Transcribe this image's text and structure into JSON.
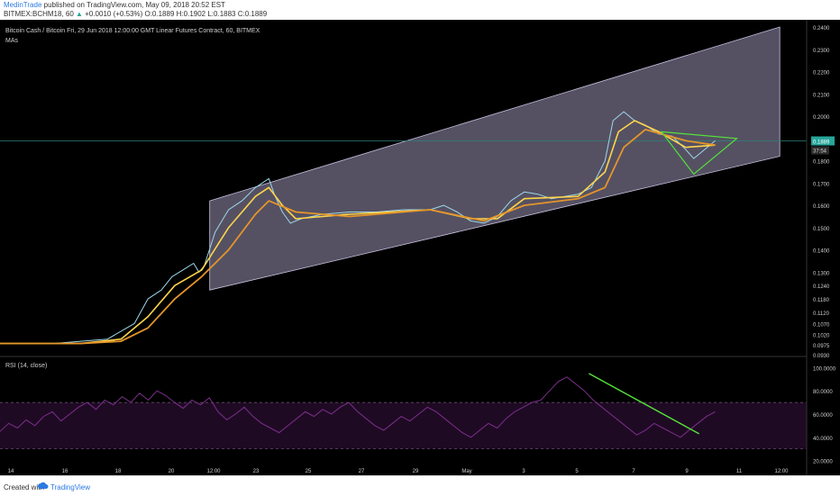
{
  "header": {
    "author": "MedinTrade",
    "published": "published on TradingView.com, May 09, 2018 20:52 EST",
    "symbol": "BITMEX:BCHM18, 60",
    "change": "+0.0010 (+0.53%)",
    "open": "O:0.1889",
    "high": "H:0.1902",
    "low": "L:0.1883",
    "close": "C:0.1889"
  },
  "chart_title": "Bitcoin Cash / Bitcoin Fri, 29 Jun 2018 12:00:00 GMT Linear Futures Contract, 60, BITMEX",
  "mas_label": "MAs",
  "rsi_label": "RSI (14, close)",
  "footer": {
    "created_with": "Created with",
    "brand": "TradingView"
  },
  "colors": {
    "background": "#000000",
    "channel": "#9a93b4",
    "ma_fast": "#ffd54a",
    "ma_slow": "#e5952a",
    "rsi_line": "#7b2f8a",
    "rsi_band": "#1f0a24",
    "trendline": "#55e33a",
    "last_price_line": "#2f7f78",
    "last_price_tag": "#26a69a"
  },
  "chart_data": [
    {
      "type": "candlestick",
      "title": "Bitcoin Cash / Bitcoin",
      "y_ticks": [
        "0.2400",
        "0.2300",
        "0.2200",
        "0.2100",
        "0.2000",
        "0.1900",
        "0.1800",
        "0.1700",
        "0.1600",
        "0.1500",
        "0.1400",
        "0.1300",
        "0.1240",
        "0.1180",
        "0.1120",
        "0.1070",
        "0.1020",
        "0.0975",
        "0.0930"
      ],
      "last_price": "0.1889",
      "secondary_tag": "37:54",
      "x_ticks": [
        "14",
        "16",
        "18",
        "20",
        "12:00",
        "23",
        "25",
        "27",
        "29",
        "May",
        "3",
        "5",
        "7",
        "9",
        "11",
        "12:00"
      ],
      "ylim": [
        0.093,
        0.24
      ],
      "series": [
        {
          "name": "close",
          "points": [
            [
              0,
              0.098
            ],
            [
              10,
              0.098
            ],
            [
              20,
              0.098
            ],
            [
              30,
              0.099
            ],
            [
              40,
              0.1
            ],
            [
              50,
              0.107
            ],
            [
              55,
              0.118
            ],
            [
              60,
              0.122
            ],
            [
              64,
              0.128
            ],
            [
              68,
              0.131
            ],
            [
              72,
              0.134
            ],
            [
              74,
              0.13
            ],
            [
              76,
              0.133
            ],
            [
              80,
              0.148
            ],
            [
              85,
              0.158
            ],
            [
              90,
              0.162
            ],
            [
              95,
              0.168
            ],
            [
              100,
              0.172
            ],
            [
              102,
              0.165
            ],
            [
              105,
              0.157
            ],
            [
              108,
              0.152
            ],
            [
              112,
              0.154
            ],
            [
              120,
              0.156
            ],
            [
              130,
              0.157
            ],
            [
              140,
              0.157
            ],
            [
              150,
              0.158
            ],
            [
              160,
              0.158
            ],
            [
              165,
              0.16
            ],
            [
              170,
              0.157
            ],
            [
              175,
              0.153
            ],
            [
              180,
              0.152
            ],
            [
              185,
              0.155
            ],
            [
              190,
              0.162
            ],
            [
              195,
              0.166
            ],
            [
              200,
              0.165
            ],
            [
              205,
              0.163
            ],
            [
              210,
              0.164
            ],
            [
              215,
              0.165
            ],
            [
              220,
              0.168
            ],
            [
              225,
              0.18
            ],
            [
              228,
              0.198
            ],
            [
              232,
              0.202
            ],
            [
              236,
              0.198
            ],
            [
              240,
              0.196
            ],
            [
              245,
              0.192
            ],
            [
              250,
              0.191
            ],
            [
              255,
              0.185
            ],
            [
              258,
              0.181
            ],
            [
              262,
              0.185
            ],
            [
              266,
              0.189
            ]
          ]
        },
        {
          "name": "MA fast",
          "points": [
            [
              0,
              0.098
            ],
            [
              30,
              0.098
            ],
            [
              45,
              0.1
            ],
            [
              55,
              0.11
            ],
            [
              65,
              0.124
            ],
            [
              75,
              0.131
            ],
            [
              85,
              0.15
            ],
            [
              95,
              0.164
            ],
            [
              100,
              0.168
            ],
            [
              105,
              0.16
            ],
            [
              110,
              0.154
            ],
            [
              130,
              0.156
            ],
            [
              160,
              0.158
            ],
            [
              175,
              0.154
            ],
            [
              185,
              0.154
            ],
            [
              195,
              0.163
            ],
            [
              215,
              0.164
            ],
            [
              225,
              0.175
            ],
            [
              230,
              0.193
            ],
            [
              236,
              0.198
            ],
            [
              245,
              0.193
            ],
            [
              255,
              0.186
            ],
            [
              266,
              0.187
            ]
          ]
        },
        {
          "name": "MA slow",
          "points": [
            [
              0,
              0.098
            ],
            [
              30,
              0.098
            ],
            [
              45,
              0.099
            ],
            [
              55,
              0.105
            ],
            [
              65,
              0.118
            ],
            [
              75,
              0.128
            ],
            [
              85,
              0.14
            ],
            [
              95,
              0.156
            ],
            [
              100,
              0.162
            ],
            [
              110,
              0.157
            ],
            [
              130,
              0.155
            ],
            [
              160,
              0.158
            ],
            [
              180,
              0.153
            ],
            [
              195,
              0.16
            ],
            [
              215,
              0.163
            ],
            [
              225,
              0.168
            ],
            [
              232,
              0.186
            ],
            [
              240,
              0.194
            ],
            [
              255,
              0.189
            ],
            [
              266,
              0.187
            ]
          ]
        }
      ]
    },
    {
      "type": "line",
      "title": "RSI (14, close)",
      "y_ticks": [
        "100.0000",
        "80.0000",
        "60.0000",
        "40.0000",
        "20.0000"
      ],
      "ylim": [
        15,
        105
      ],
      "bands": [
        70,
        30
      ],
      "values": [
        45,
        52,
        48,
        55,
        50,
        58,
        62,
        54,
        60,
        66,
        70,
        64,
        72,
        68,
        75,
        70,
        78,
        72,
        80,
        76,
        70,
        65,
        72,
        68,
        74,
        62,
        55,
        60,
        66,
        58,
        52,
        48,
        44,
        50,
        56,
        62,
        58,
        64,
        60,
        66,
        70,
        62,
        56,
        50,
        46,
        52,
        58,
        54,
        60,
        66,
        62,
        56,
        50,
        44,
        40,
        46,
        52,
        48,
        56,
        62,
        66,
        70,
        72,
        80,
        88,
        92,
        86,
        80,
        72,
        66,
        60,
        54,
        48,
        42,
        46,
        52,
        48,
        44,
        40,
        46,
        52,
        58,
        62
      ]
    }
  ]
}
